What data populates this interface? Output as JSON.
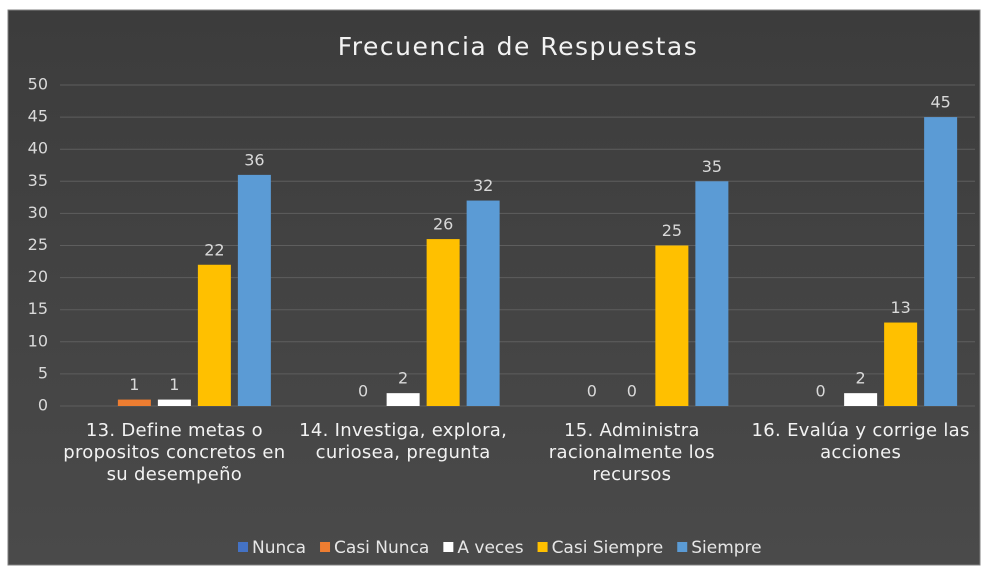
{
  "chart_data": {
    "type": "bar",
    "title": "Frecuencia de Respuestas",
    "categories": [
      "13. Define metas o propositos concretos en su desempeño",
      "14.  Investiga, explora, curiosea, pregunta",
      "15. Administra racionalmente los recursos",
      "16. Evalúa y corrige las acciones"
    ],
    "series": [
      {
        "name": "Nunca",
        "color": "#4472c4",
        "values": [
          0,
          0,
          0,
          0
        ],
        "data_labels": false
      },
      {
        "name": "Casi Nunca",
        "color": "#ed7d31",
        "values": [
          1,
          0,
          0,
          0
        ],
        "data_labels": true
      },
      {
        "name": "A veces",
        "color": "#ffffff",
        "values": [
          1,
          2,
          0,
          2
        ],
        "data_labels": true
      },
      {
        "name": "Casi Siempre",
        "color": "#ffc000",
        "values": [
          22,
          26,
          25,
          13
        ],
        "data_labels": true
      },
      {
        "name": "Siempre",
        "color": "#5b9bd5",
        "values": [
          36,
          32,
          35,
          45
        ],
        "data_labels": true
      }
    ],
    "ylim": [
      0,
      50
    ],
    "yticks": [
      0,
      5,
      10,
      15,
      20,
      25,
      30,
      35,
      40,
      45,
      50
    ],
    "grid": true,
    "legend": "bottom"
  }
}
